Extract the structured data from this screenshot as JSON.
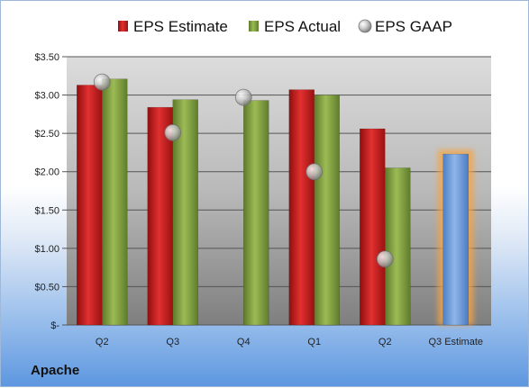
{
  "company": "Apache",
  "chart_data": {
    "type": "bar",
    "categories": [
      "Q2",
      "Q3",
      "Q4",
      "Q1",
      "Q2",
      "Q3 Estimate"
    ],
    "series": [
      {
        "name": "EPS Estimate",
        "values": [
          3.13,
          2.84,
          null,
          3.07,
          2.56,
          null
        ],
        "color": "#cc1f1f"
      },
      {
        "name": "EPS Actual",
        "values": [
          3.21,
          2.94,
          2.93,
          3.0,
          2.05,
          null
        ],
        "color": "#7a9a3a"
      },
      {
        "name": "EPS GAAP",
        "values": [
          3.17,
          2.51,
          2.97,
          2.0,
          0.86,
          null
        ],
        "color": "#b8b8b8",
        "marker": "circle"
      }
    ],
    "next_estimate": {
      "category": "Q3 Estimate",
      "value": 2.23,
      "color": "#6a9bd8",
      "highlight": "#f5a443"
    },
    "y_ticks": [
      "$-",
      "$0.50",
      "$1.00",
      "$1.50",
      "$2.00",
      "$2.50",
      "$3.00",
      "$3.50"
    ],
    "ylim": [
      0,
      3.5
    ],
    "grid": true,
    "legend_position": "top"
  }
}
